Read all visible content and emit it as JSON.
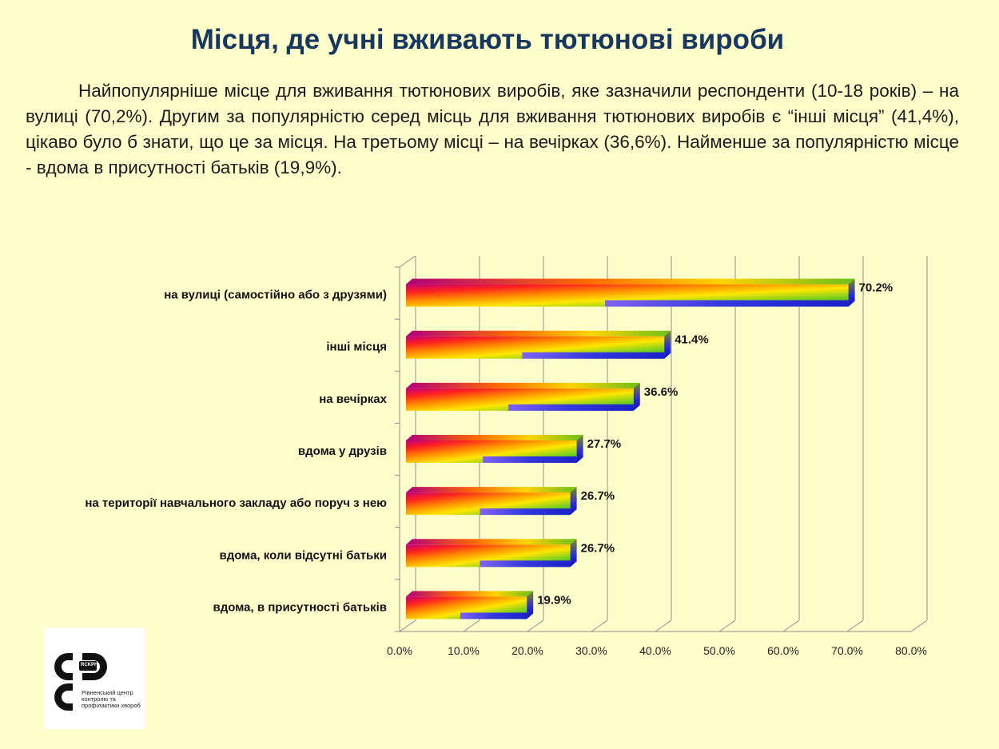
{
  "slide": {
    "title": "Місця, де учні вживають тютюнові вироби",
    "paragraph": "Найпопулярніше місце для вживання тютюнових виробів, яке зазначили респонденти (10-18 років) – на вулиці (70,2%). Другим за популярністю серед місць для вживання тютюнових виробів є “інші місця” (41,4%), цікаво було б знати, що це за місця. На третьому місці – на вечірках (36,6%). Найменше за популярністю місце - вдома в присутності батьків (19,9%)."
  },
  "logo": {
    "badge": "RCKPH",
    "text": "Рівненський центр контролю та профілактики хвороб"
  },
  "chart_data": {
    "type": "bar",
    "orientation": "horizontal",
    "categories": [
      "на вулиці (самостійно або з друзями)",
      "інші місця",
      "на вечірках",
      "вдома у друзів",
      "на території навчального закладу або поруч з нею",
      "вдома, коли відсутні батьки",
      "вдома, в присутності батьків"
    ],
    "values": [
      70.2,
      41.4,
      36.6,
      27.7,
      26.7,
      26.7,
      19.9
    ],
    "data_labels": [
      "70.2%",
      "41.4%",
      "36.6%",
      "27.7%",
      "26.7%",
      "26.7%",
      "19.9%"
    ],
    "x_ticks": [
      "0.0%",
      "10.0%",
      "20.0%",
      "30.0%",
      "40.0%",
      "50.0%",
      "60.0%",
      "70.0%",
      "80.0%"
    ],
    "xlim": [
      0,
      80
    ],
    "grid": true,
    "legend": false,
    "style": "3d-rainbow-gradient",
    "colors": {
      "grid": "#8C8C8C",
      "bar_bottom": "#1F1FE0",
      "rainbow": [
        "#C0007A",
        "#FF2020",
        "#FF8C00",
        "#FFE600",
        "#7CD11F",
        "#1F9E2E"
      ]
    }
  }
}
